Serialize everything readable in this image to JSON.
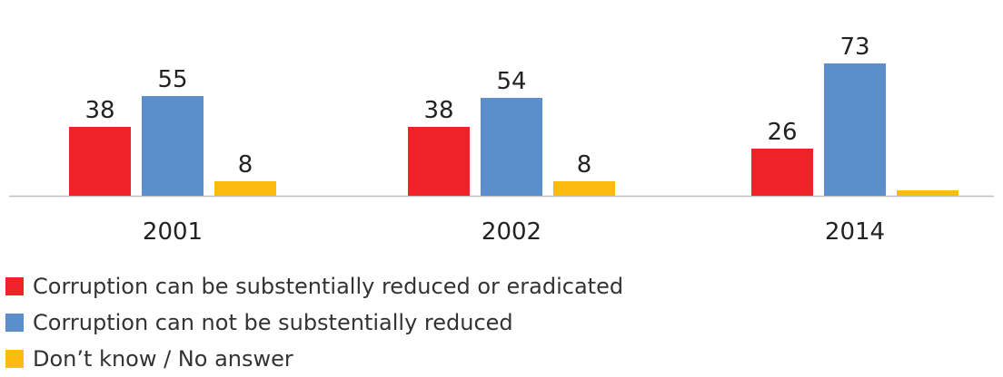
{
  "chart_data": {
    "type": "bar",
    "categories": [
      "2001",
      "2002",
      "2014"
    ],
    "series": [
      {
        "name": "Corruption can be substentially reduced or eradicated",
        "color": "#ee2227",
        "values": [
          38,
          38,
          26
        ],
        "labels": [
          "38",
          "38",
          "26"
        ]
      },
      {
        "name": "Corruption can not be substentially reduced",
        "color": "#5b8fcb",
        "values": [
          55,
          54,
          73
        ],
        "labels": [
          "55",
          "54",
          "73"
        ]
      },
      {
        "name": "Don’t know / No answer",
        "color": "#fdbb11",
        "values": [
          8,
          8,
          3
        ],
        "labels": [
          "8",
          "8",
          ""
        ]
      }
    ],
    "legend_position": "bottom-left",
    "grid": false,
    "ylim": [
      0,
      80
    ]
  }
}
